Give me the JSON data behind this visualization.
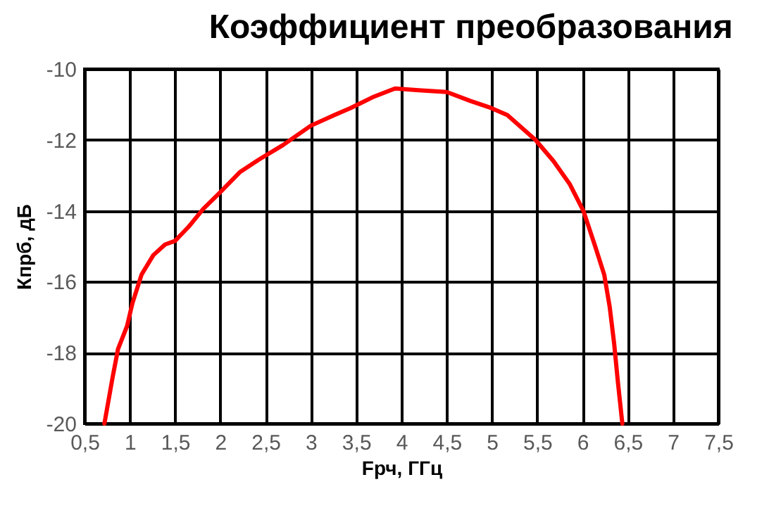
{
  "chart_data": {
    "type": "line",
    "title": "Коэффициент преобразования",
    "xlabel": "Fрч, ГГц",
    "ylabel": "Кпрб, дБ",
    "x": [
      0.72,
      0.81,
      0.87,
      0.97,
      1.03,
      1.13,
      1.26,
      1.39,
      1.5,
      1.65,
      1.81,
      1.99,
      2.22,
      2.43,
      2.69,
      3.0,
      3.26,
      3.44,
      3.68,
      3.93,
      4.19,
      4.5,
      4.76,
      4.99,
      5.17,
      5.48,
      5.68,
      5.86,
      6.01,
      6.14,
      6.24,
      6.3,
      6.35,
      6.39,
      6.44
    ],
    "series": [
      {
        "color": "#ff0000",
        "values": [
          -20,
          -18.7,
          -17.9,
          -17.25,
          -16.6,
          -15.8,
          -15.25,
          -14.95,
          -14.85,
          -14.45,
          -13.95,
          -13.5,
          -12.9,
          -12.55,
          -12.15,
          -11.6,
          -11.3,
          -11.1,
          -10.8,
          -10.55,
          -10.6,
          -10.65,
          -10.9,
          -11.1,
          -11.3,
          -12,
          -12.6,
          -13.25,
          -14,
          -15,
          -15.8,
          -16.7,
          -17.75,
          -18.8,
          -20
        ]
      }
    ],
    "xlim": [
      0.5,
      7.5
    ],
    "ylim": [
      -20,
      -10
    ],
    "xticks": [
      {
        "value": 0.5,
        "label": "0,5"
      },
      1,
      {
        "value": 1.5,
        "label": "1,5"
      },
      2,
      {
        "value": 2.5,
        "label": "2,5"
      },
      3,
      {
        "value": 3.5,
        "label": "3,5"
      },
      4,
      {
        "value": 4.5,
        "label": "4,5"
      },
      5,
      {
        "value": 5.5,
        "label": "5,5"
      },
      6,
      {
        "value": 6.5,
        "label": "6,5"
      },
      7,
      {
        "value": 7.5,
        "label": "7,5"
      }
    ],
    "yticks": [
      -20,
      -18,
      -16,
      -14,
      -12,
      -10
    ],
    "grid": true,
    "legend": false,
    "marker": "none",
    "line_style": "solid"
  }
}
